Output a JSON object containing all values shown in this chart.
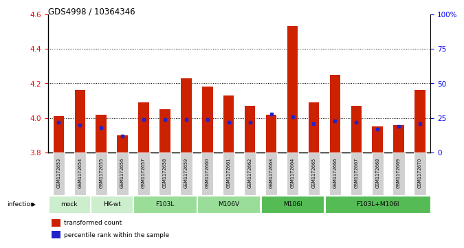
{
  "title": "GDS4998 / 10364346",
  "samples": [
    "GSM1172653",
    "GSM1172654",
    "GSM1172655",
    "GSM1172656",
    "GSM1172657",
    "GSM1172658",
    "GSM1172659",
    "GSM1172660",
    "GSM1172661",
    "GSM1172662",
    "GSM1172663",
    "GSM1172664",
    "GSM1172665",
    "GSM1172666",
    "GSM1172667",
    "GSM1172668",
    "GSM1172669",
    "GSM1172670"
  ],
  "red_values": [
    4.01,
    4.16,
    4.02,
    3.9,
    4.09,
    4.05,
    4.23,
    4.18,
    4.13,
    4.07,
    4.02,
    4.53,
    4.09,
    4.25,
    4.07,
    3.95,
    3.96,
    4.16
  ],
  "blue_values": [
    22,
    20,
    18,
    12,
    24,
    24,
    24,
    24,
    22,
    22,
    28,
    26,
    21,
    23,
    22,
    17,
    19,
    21
  ],
  "ylim_left": [
    3.8,
    4.6
  ],
  "ylim_right": [
    0,
    100
  ],
  "bar_color": "#cc2200",
  "marker_color": "#2222cc",
  "yticks_left": [
    3.8,
    4.0,
    4.2,
    4.4,
    4.6
  ],
  "yticks_right": [
    0,
    25,
    50,
    75,
    100
  ],
  "ytick_right_labels": [
    "0",
    "25",
    "50",
    "75",
    "100%"
  ],
  "groups_data": [
    {
      "label": "mock",
      "indices": [
        0,
        1
      ],
      "color": "#cceecc"
    },
    {
      "label": "HK-wt",
      "indices": [
        2,
        3
      ],
      "color": "#cceecc"
    },
    {
      "label": "F103L",
      "indices": [
        4,
        5,
        6
      ],
      "color": "#99dd99"
    },
    {
      "label": "M106V",
      "indices": [
        7,
        8,
        9
      ],
      "color": "#99dd99"
    },
    {
      "label": "M106I",
      "indices": [
        10,
        11,
        12
      ],
      "color": "#55bb55"
    },
    {
      "label": "F103L+M106I",
      "indices": [
        13,
        14,
        15,
        16,
        17
      ],
      "color": "#55bb55"
    }
  ],
  "infection_label": "infection",
  "legend_items": [
    {
      "color": "#cc2200",
      "label": "transformed count"
    },
    {
      "color": "#2222cc",
      "label": "percentile rank within the sample"
    }
  ]
}
